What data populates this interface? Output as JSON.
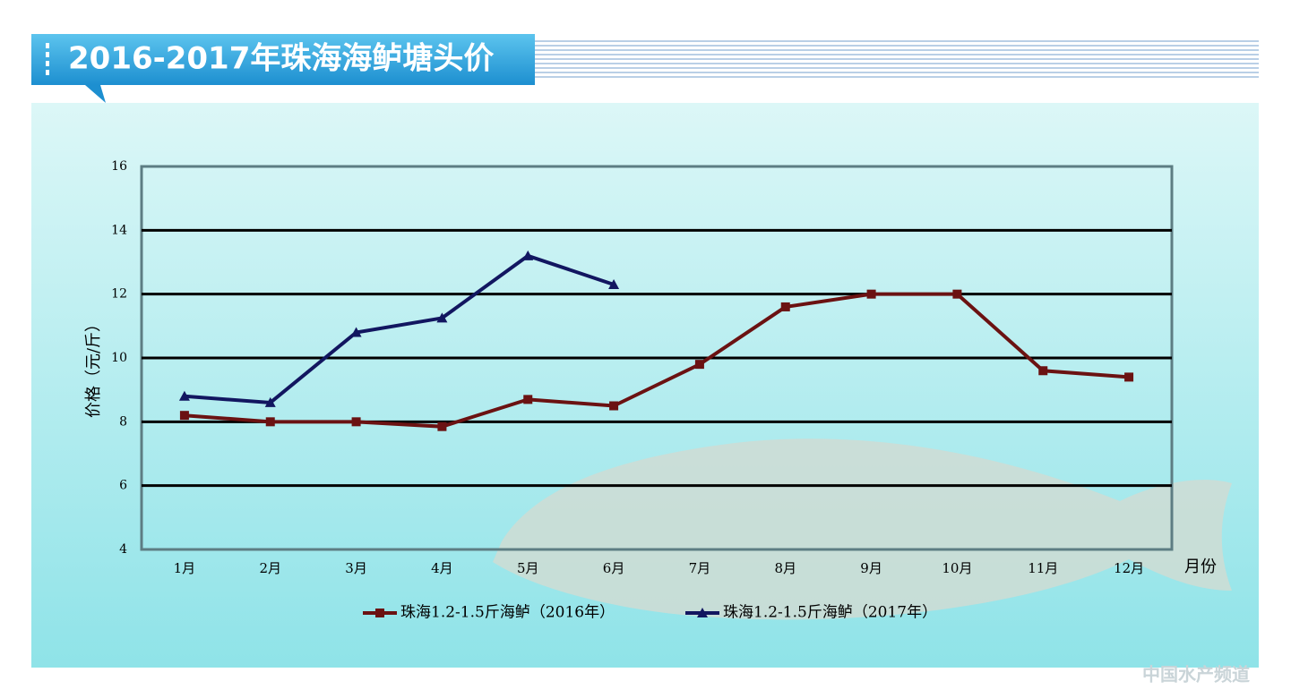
{
  "chart_data": {
    "type": "line",
    "title": "2016-2017年珠海海鲈塘头价",
    "y_label": "价格（元/斤）",
    "x_label": "月份",
    "watermark": "中国水产频道",
    "categories": [
      "1月",
      "2月",
      "3月",
      "4月",
      "5月",
      "6月",
      "7月",
      "8月",
      "9月",
      "10月",
      "11月",
      "12月"
    ],
    "series": [
      {
        "name": "珠海1.2-1.5斤海鲈（2016年）",
        "color": "#6b1212",
        "marker": "square",
        "values": [
          8.2,
          8.0,
          8.0,
          7.85,
          8.7,
          8.5,
          9.8,
          11.6,
          12.0,
          12.0,
          9.6,
          9.4
        ]
      },
      {
        "name": "珠海1.2-1.5斤海鲈（2017年）",
        "color": "#121660",
        "marker": "triangle",
        "values": [
          8.8,
          8.6,
          10.8,
          11.25,
          13.2,
          12.3,
          null,
          null,
          null,
          null,
          null,
          null
        ]
      }
    ],
    "ylim": [
      4,
      16
    ],
    "yticks": [
      4,
      6,
      8,
      10,
      12,
      14,
      16
    ],
    "grid": true,
    "legend": "bottom"
  }
}
